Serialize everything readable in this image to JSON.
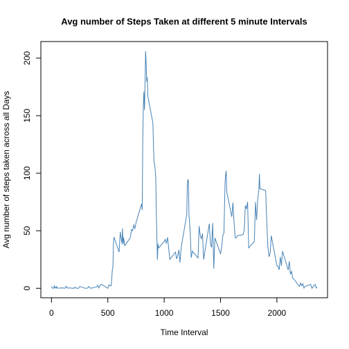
{
  "chart_data": {
    "type": "line",
    "title": "Avg number of Steps Taken at different 5 minute Intervals",
    "x_label": "Time Interval",
    "y_label": "Avg number of steps taken across all Days",
    "x": [
      0,
      5,
      10,
      15,
      20,
      25,
      30,
      35,
      40,
      45,
      50,
      55,
      100,
      110,
      120,
      130,
      140,
      150,
      200,
      210,
      220,
      230,
      240,
      250,
      300,
      310,
      320,
      330,
      340,
      350,
      400,
      410,
      420,
      430,
      440,
      450,
      500,
      510,
      520,
      530,
      540,
      545,
      550,
      555,
      600,
      610,
      620,
      625,
      630,
      635,
      640,
      650,
      700,
      710,
      720,
      730,
      740,
      750,
      800,
      805,
      810,
      815,
      820,
      825,
      830,
      835,
      840,
      845,
      850,
      855,
      900,
      905,
      910,
      915,
      920,
      925,
      930,
      935,
      940,
      945,
      950,
      1000,
      1010,
      1020,
      1030,
      1040,
      1050,
      1100,
      1110,
      1120,
      1130,
      1140,
      1150,
      1200,
      1205,
      1210,
      1215,
      1220,
      1230,
      1240,
      1250,
      1300,
      1310,
      1320,
      1330,
      1340,
      1350,
      1400,
      1410,
      1420,
      1430,
      1440,
      1450,
      1500,
      1510,
      1520,
      1530,
      1540,
      1545,
      1550,
      1555,
      1600,
      1610,
      1620,
      1630,
      1640,
      1650,
      1700,
      1710,
      1720,
      1730,
      1740,
      1750,
      1800,
      1810,
      1820,
      1830,
      1840,
      1845,
      1850,
      1900,
      1910,
      1920,
      1930,
      1940,
      1950,
      2000,
      2010,
      2020,
      2030,
      2040,
      2050,
      2100,
      2110,
      2120,
      2130,
      2140,
      2150,
      2200,
      2210,
      2220,
      2230,
      2240,
      2250,
      2300,
      2310,
      2320,
      2330,
      2340,
      2350,
      2355
    ],
    "series": [
      {
        "name": "steps",
        "color": "#4682b4",
        "values": [
          1.7,
          0.3,
          0.1,
          0.2,
          0.1,
          2.1,
          0.5,
          0.9,
          0,
          1.5,
          0.3,
          0.1,
          0.3,
          0.2,
          0,
          1.8,
          0.2,
          0.3,
          0,
          1.1,
          0,
          0,
          0,
          1.5,
          0,
          0,
          0.2,
          1.6,
          0.5,
          0,
          1.2,
          2.6,
          0.3,
          2.1,
          3.5,
          3.1,
          0,
          3,
          2.3,
          2.1,
          16,
          18,
          39.5,
          44.5,
          31.5,
          49,
          42,
          39,
          52,
          38,
          44,
          37,
          44,
          51,
          50,
          55,
          52,
          57,
          73.4,
          68,
          129,
          157.5,
          171,
          155,
          177,
          206,
          195.9,
          179.6,
          183.4,
          167,
          143.5,
          124,
          109,
          108,
          103.7,
          95.9,
          66.2,
          45.2,
          24.8,
          38.8,
          35,
          40.6,
          42.4,
          38.9,
          44.3,
          34.6,
          25.1,
          31.4,
          25.5,
          28.4,
          33.3,
          22.3,
          35,
          63.9,
          87.5,
          94.8,
          92.8,
          63.4,
          50.2,
          26.5,
          32.3,
          26.3,
          54,
          46,
          42.8,
          47.5,
          25,
          56.1,
          38.9,
          35.5,
          56.7,
          17.1,
          43.7,
          30,
          35.5,
          45.7,
          48.1,
          91.6,
          98.7,
          102.1,
          83.9,
          62.1,
          74.5,
          56.7,
          43.8,
          44,
          45.7,
          46.6,
          50.6,
          72,
          68.9,
          75.1,
          35.1,
          40.7,
          74.7,
          59.3,
          77.8,
          85.3,
          99.5,
          86.6,
          84.9,
          58,
          36.1,
          27.4,
          30.2,
          45.7,
          19.6,
          19.3,
          16,
          27.3,
          19.5,
          32.3,
          15.9,
          23.5,
          12.2,
          14.7,
          8.7,
          8.1,
          1.6,
          4.6,
          2.2,
          3.9,
          0.2,
          1.6,
          3.3,
          0,
          1,
          2.6,
          3.3,
          0.2,
          1.1
        ]
      }
    ],
    "xlim": [
      -94.2,
      2449.2
    ],
    "ylim": [
      -8.24,
      214.41
    ],
    "xticks": [
      0,
      500,
      1000,
      1500,
      2000
    ],
    "yticks": [
      0,
      50,
      100,
      150,
      200
    ]
  }
}
